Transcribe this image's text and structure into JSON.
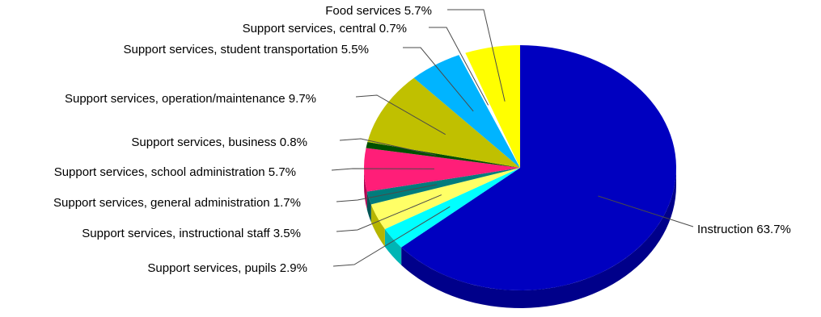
{
  "chart_data": {
    "type": "pie",
    "style": "3d-exploded-none",
    "slices": [
      {
        "label": "Instruction",
        "value": 63.7,
        "text": "Instruction 63.7%",
        "color": "#0000c0",
        "side_color": "#00008a"
      },
      {
        "label": "Support services, pupils",
        "value": 2.9,
        "text": "Support services, pupils 2.9%",
        "color": "#00ffff",
        "side_color": "#00b5b5"
      },
      {
        "label": "Support services, instructional staff",
        "value": 3.5,
        "text": "Support services, instructional staff 3.5%",
        "color": "#ffff66",
        "side_color": "#b5b500"
      },
      {
        "label": "Support services, general administration",
        "value": 1.7,
        "text": "Support services, general administration 1.7%",
        "color": "#007c7c",
        "side_color": "#005555"
      },
      {
        "label": "Support services, school administration",
        "value": 5.7,
        "text": "Support services, school administration 5.7%",
        "color": "#ff1e78",
        "side_color": "#b00050"
      },
      {
        "label": "Support services, business",
        "value": 0.8,
        "text": "Support services, business 0.8%",
        "color": "#005000",
        "side_color": "#003000"
      },
      {
        "label": "Support services, operation/maintenance",
        "value": 9.7,
        "text": "Support services, operation/maintenance 9.7%",
        "color": "#c0c000",
        "side_color": "#8a8a00"
      },
      {
        "label": "Support services, student transportation",
        "value": 5.5,
        "text": "Support services, student transportation 5.5%",
        "color": "#00b4ff",
        "side_color": "#0080b5"
      },
      {
        "label": "Support services, central",
        "value": 0.7,
        "text": "Support services, central 0.7%",
        "color": "#ffffff",
        "side_color": "#c0c0c0"
      },
      {
        "label": "Food services",
        "value": 5.7,
        "text": "Food services 5.7%",
        "color": "#ffff00",
        "side_color": "#b5b500"
      }
    ],
    "legend": "none",
    "labels": "outside with leader lines"
  }
}
